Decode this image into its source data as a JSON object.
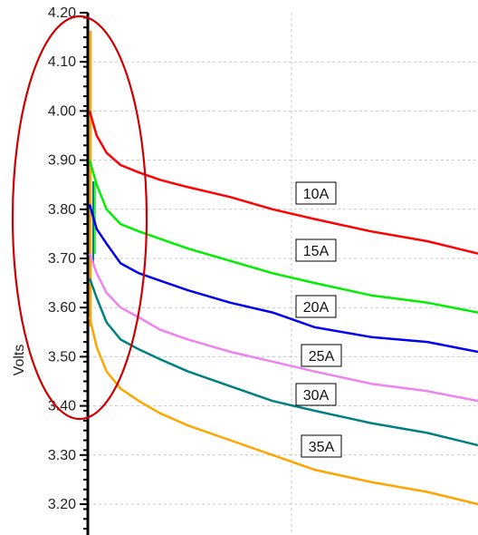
{
  "chart_data": {
    "type": "line",
    "title": "",
    "ylabel": "Volts",
    "ylim": [
      3.15,
      4.2
    ],
    "yticks": [
      "4.20",
      "4.10",
      "4.00",
      "3.90",
      "3.80",
      "3.70",
      "3.60",
      "3.50",
      "3.40",
      "3.30",
      "3.20"
    ],
    "grid": true,
    "highlight": {
      "shape": "ellipse",
      "color": "#cc0000",
      "note": "initial voltage drop region"
    },
    "series": [
      {
        "name": "10A",
        "color": "#ff0000",
        "points": [
          [
            0.0,
            4.0
          ],
          [
            0.05,
            3.95
          ],
          [
            0.12,
            3.915
          ],
          [
            0.22,
            3.89
          ],
          [
            0.35,
            3.875
          ],
          [
            0.5,
            3.86
          ],
          [
            0.7,
            3.845
          ],
          [
            1.0,
            3.825
          ],
          [
            1.3,
            3.8
          ],
          [
            1.6,
            3.78
          ],
          [
            2.0,
            3.755
          ],
          [
            2.4,
            3.735
          ],
          [
            2.76,
            3.71
          ]
        ]
      },
      {
        "name": "15A",
        "color": "#00ee00",
        "points": [
          [
            0.0,
            3.9
          ],
          [
            0.05,
            3.85
          ],
          [
            0.12,
            3.8
          ],
          [
            0.22,
            3.77
          ],
          [
            0.35,
            3.755
          ],
          [
            0.5,
            3.74
          ],
          [
            0.7,
            3.72
          ],
          [
            1.0,
            3.695
          ],
          [
            1.3,
            3.67
          ],
          [
            1.6,
            3.65
          ],
          [
            2.0,
            3.625
          ],
          [
            2.4,
            3.61
          ],
          [
            2.76,
            3.59
          ]
        ]
      },
      {
        "name": "20A",
        "color": "#0000ee",
        "points": [
          [
            0.0,
            3.81
          ],
          [
            0.05,
            3.76
          ],
          [
            0.12,
            3.73
          ],
          [
            0.22,
            3.69
          ],
          [
            0.35,
            3.67
          ],
          [
            0.5,
            3.655
          ],
          [
            0.7,
            3.635
          ],
          [
            1.0,
            3.61
          ],
          [
            1.3,
            3.59
          ],
          [
            1.6,
            3.56
          ],
          [
            2.0,
            3.54
          ],
          [
            2.4,
            3.53
          ],
          [
            2.76,
            3.51
          ]
        ]
      },
      {
        "name": "25A",
        "color": "#ee82ee",
        "points": [
          [
            0.0,
            3.71
          ],
          [
            0.05,
            3.67
          ],
          [
            0.12,
            3.63
          ],
          [
            0.22,
            3.6
          ],
          [
            0.35,
            3.58
          ],
          [
            0.5,
            3.555
          ],
          [
            0.7,
            3.535
          ],
          [
            1.0,
            3.51
          ],
          [
            1.3,
            3.49
          ],
          [
            1.6,
            3.47
          ],
          [
            2.0,
            3.445
          ],
          [
            2.4,
            3.43
          ],
          [
            2.76,
            3.41
          ]
        ]
      },
      {
        "name": "30A",
        "color": "#008080",
        "points": [
          [
            0.0,
            3.66
          ],
          [
            0.05,
            3.62
          ],
          [
            0.12,
            3.57
          ],
          [
            0.22,
            3.535
          ],
          [
            0.35,
            3.515
          ],
          [
            0.5,
            3.495
          ],
          [
            0.7,
            3.47
          ],
          [
            1.0,
            3.44
          ],
          [
            1.3,
            3.41
          ],
          [
            1.6,
            3.39
          ],
          [
            2.0,
            3.365
          ],
          [
            2.4,
            3.345
          ],
          [
            2.76,
            3.32
          ]
        ]
      },
      {
        "name": "35A",
        "color": "#ffa500",
        "points": [
          [
            0.0,
            3.58
          ],
          [
            0.05,
            3.52
          ],
          [
            0.12,
            3.47
          ],
          [
            0.22,
            3.435
          ],
          [
            0.35,
            3.41
          ],
          [
            0.5,
            3.385
          ],
          [
            0.7,
            3.36
          ],
          [
            1.0,
            3.33
          ],
          [
            1.3,
            3.3
          ],
          [
            1.6,
            3.27
          ],
          [
            2.0,
            3.245
          ],
          [
            2.4,
            3.225
          ],
          [
            2.76,
            3.2
          ]
        ]
      }
    ]
  }
}
